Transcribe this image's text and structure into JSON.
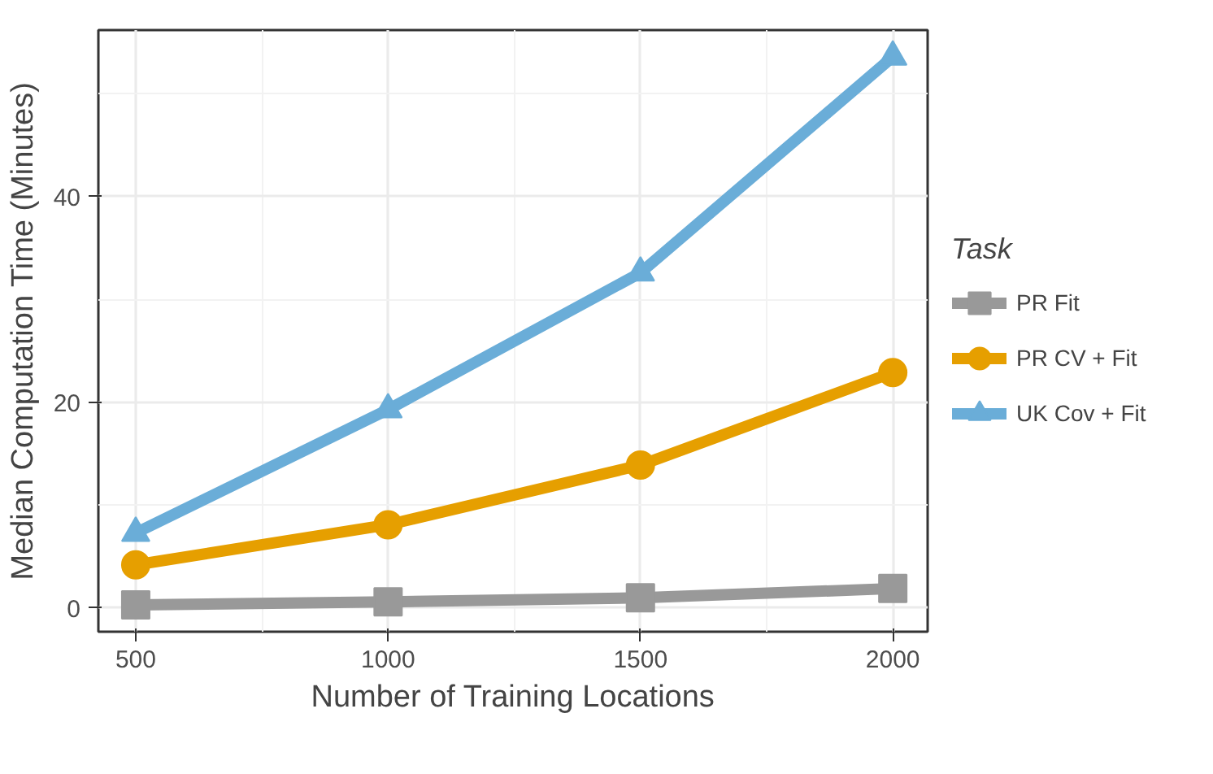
{
  "chart_data": {
    "type": "line",
    "xlabel": "Number of Training Locations",
    "ylabel": "Median Computation Time (Minutes)",
    "legend_title": "Task",
    "x": [
      500,
      1000,
      1500,
      2000
    ],
    "series": [
      {
        "name": "PR Fit",
        "color": "#999999",
        "marker": "square",
        "values": [
          0.3,
          0.6,
          1.0,
          1.9
        ]
      },
      {
        "name": "PR CV + Fit",
        "color": "#e69f00",
        "marker": "circle",
        "values": [
          4.2,
          8.1,
          13.9,
          22.9
        ]
      },
      {
        "name": "UK Cov + Fit",
        "color": "#6aadd8",
        "marker": "triangle",
        "values": [
          7.3,
          19.3,
          32.6,
          53.6
        ]
      }
    ],
    "xlim": [
      426,
      2069
    ],
    "ylim": [
      -2.3,
      56.2
    ],
    "xticks": [
      500,
      1000,
      1500,
      2000
    ],
    "yticks": [
      0,
      20,
      40
    ],
    "grid": true,
    "legend": "right",
    "line_style": "solid"
  }
}
